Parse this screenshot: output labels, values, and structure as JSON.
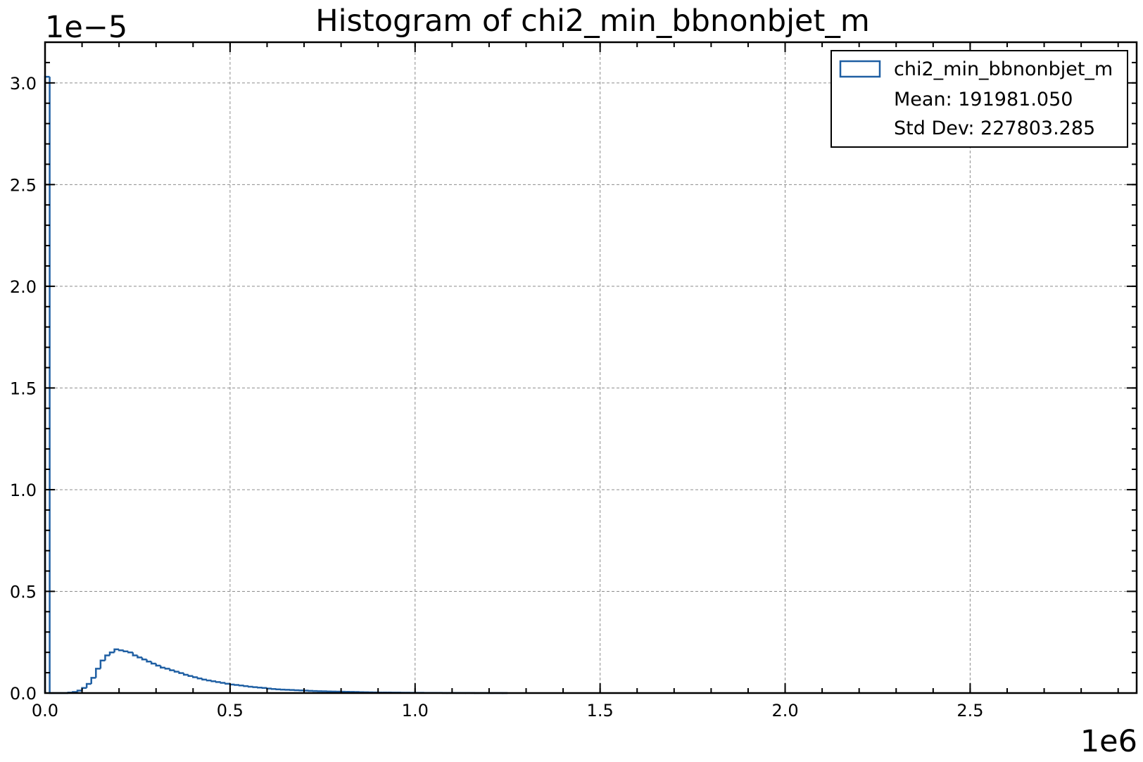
{
  "chart_data": {
    "type": "histogram",
    "title": "Histogram of chi2_min_bbnonbjet_m",
    "x_offset_label": "1e6",
    "y_offset_label": "1e−5",
    "xlabel": "",
    "ylabel": "",
    "xlim": [
      0,
      2950000
    ],
    "ylim": [
      0,
      3.2e-05
    ],
    "x_ticks": [
      0,
      500000,
      1000000,
      1500000,
      2000000,
      2500000
    ],
    "x_tick_labels": [
      "0.0",
      "0.5",
      "1.0",
      "1.5",
      "2.0",
      "2.5"
    ],
    "y_ticks": [
      0,
      5e-06,
      1e-05,
      1.5e-05,
      2e-05,
      2.5e-05,
      3e-05
    ],
    "y_tick_labels": [
      "0.0",
      "0.5",
      "1.0",
      "1.5",
      "2.0",
      "2.5",
      "3.0"
    ],
    "grid": true,
    "legend_position": "top-right",
    "line_color": "#1f5fa3",
    "bin_width": 12500,
    "bin_start": 0,
    "series": [
      {
        "name": "chi2_min_bbnonbjet_m",
        "values": [
          3.03e-05,
          0,
          0,
          0,
          0,
          2e-08,
          5e-08,
          1.2e-07,
          2.5e-07,
          4.5e-07,
          7.5e-07,
          1.2e-06,
          1.6e-06,
          1.85e-06,
          2e-06,
          2.15e-06,
          2.1e-06,
          2.05e-06,
          2e-06,
          1.85e-06,
          1.75e-06,
          1.65e-06,
          1.55e-06,
          1.45e-06,
          1.35e-06,
          1.25e-06,
          1.2e-06,
          1.12e-06,
          1.05e-06,
          9.8e-07,
          9e-07,
          8.4e-07,
          7.8e-07,
          7.2e-07,
          6.6e-07,
          6.2e-07,
          5.8e-07,
          5.4e-07,
          5e-07,
          4.6e-07,
          4.2e-07,
          4e-07,
          3.7e-07,
          3.4e-07,
          3.1e-07,
          2.9e-07,
          2.7e-07,
          2.5e-07,
          2.2e-07,
          2e-07,
          1.8e-07,
          1.7e-07,
          1.6e-07,
          1.5e-07,
          1.4e-07,
          1.3e-07,
          1.2e-07,
          1.1e-07,
          1e-07,
          9e-08,
          8.5e-08,
          8e-08,
          7.5e-08,
          7e-08,
          6.5e-08,
          6e-08,
          5.5e-08,
          5e-08,
          4.5e-08,
          4e-08,
          3.5e-08,
          3e-08,
          2.8e-08,
          2.6e-08,
          2.4e-08,
          2.2e-08,
          2e-08,
          1.8e-08,
          1.6e-08,
          1.4e-08,
          1.2e-08,
          1.1e-08,
          1e-08,
          9e-09,
          8e-09,
          7e-09,
          6e-09,
          5e-09,
          5e-09,
          4e-09,
          4e-09,
          3e-09,
          3e-09,
          2e-09,
          2e-09,
          2e-09,
          1e-09,
          1e-09,
          1e-09,
          0
        ]
      }
    ],
    "legend": {
      "label": "chi2_min_bbnonbjet_m",
      "mean_text": "Mean: 191981.050",
      "std_text": "Std Dev: 227803.285"
    }
  }
}
